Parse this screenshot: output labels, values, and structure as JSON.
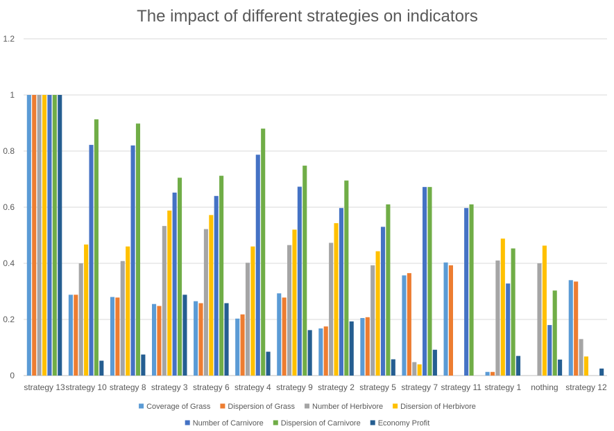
{
  "chart_data": {
    "type": "bar",
    "title": "The impact of different strategies on indicators",
    "xlabel": "",
    "ylabel": "",
    "ylim": [
      0,
      1.2
    ],
    "yticks": [
      "0",
      "0.2",
      "0.4",
      "0.6",
      "0.8",
      "1",
      "1.2"
    ],
    "grid": true,
    "legend_position": "bottom",
    "categories": [
      "strategy 13",
      "strategy 10",
      "strategy 8",
      "strategy 3",
      "strategy 6",
      "strategy 4",
      "strategy 9",
      "strategy 2",
      "strategy 5",
      "strategy 7",
      "strategy 11",
      "strategy 1",
      "nothing",
      "strategy 12"
    ],
    "series": [
      {
        "name": "Coverage of Grass",
        "color": "#5b9bd5",
        "values": [
          1.0,
          0.288,
          0.28,
          0.255,
          0.265,
          0.203,
          0.293,
          0.168,
          0.205,
          0.357,
          0.403,
          0.013,
          0.0,
          0.34
        ]
      },
      {
        "name": "Dispersion of Grass",
        "color": "#ed7d31",
        "values": [
          1.0,
          0.288,
          0.278,
          0.248,
          0.258,
          0.218,
          0.278,
          0.175,
          0.208,
          0.365,
          0.393,
          0.013,
          0.0,
          0.335
        ]
      },
      {
        "name": "Number of Herbivore",
        "color": "#a5a5a5",
        "values": [
          1.0,
          0.4,
          0.408,
          0.533,
          0.522,
          0.402,
          0.465,
          0.473,
          0.393,
          0.048,
          0.0,
          0.41,
          0.4,
          0.13
        ]
      },
      {
        "name": "Disersion of Herbivore",
        "color": "#ffc000",
        "values": [
          1.0,
          0.467,
          0.46,
          0.588,
          0.572,
          0.46,
          0.52,
          0.543,
          0.443,
          0.04,
          0.0,
          0.488,
          0.463,
          0.068
        ]
      },
      {
        "name": "Number of Carnivore",
        "color": "#4472c4",
        "values": [
          1.0,
          0.822,
          0.82,
          0.652,
          0.64,
          0.787,
          0.673,
          0.597,
          0.53,
          0.672,
          0.597,
          0.328,
          0.18,
          0.0
        ]
      },
      {
        "name": "Dispersion of Carnivore",
        "color": "#70ad47",
        "values": [
          1.0,
          0.913,
          0.898,
          0.705,
          0.712,
          0.88,
          0.748,
          0.695,
          0.61,
          0.672,
          0.61,
          0.453,
          0.303,
          0.0
        ]
      },
      {
        "name": "Economy Profit",
        "color": "#255e91",
        "values": [
          1.0,
          0.053,
          0.075,
          0.288,
          0.258,
          0.085,
          0.162,
          0.193,
          0.058,
          0.092,
          0.0,
          0.07,
          0.057,
          0.025
        ]
      }
    ]
  }
}
